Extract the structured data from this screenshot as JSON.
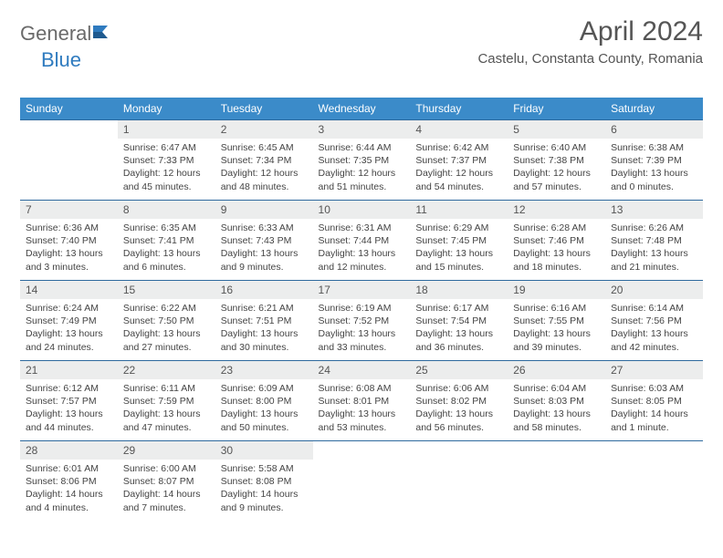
{
  "logo": {
    "word1": "General",
    "word2": "Blue"
  },
  "title": "April 2024",
  "subtitle": "Castelu, Constanta County, Romania",
  "colors": {
    "header_bg": "#3b8bc9",
    "header_text": "#ffffff",
    "daynum_bg": "#eceded",
    "row_border": "#2f6a9e",
    "logo_gray": "#6a6a6a",
    "logo_blue": "#2f7bbf"
  },
  "weekdays": [
    "Sunday",
    "Monday",
    "Tuesday",
    "Wednesday",
    "Thursday",
    "Friday",
    "Saturday"
  ],
  "weeks": [
    [
      {
        "n": "",
        "sr": "",
        "ss": "",
        "dl": ""
      },
      {
        "n": "1",
        "sr": "Sunrise: 6:47 AM",
        "ss": "Sunset: 7:33 PM",
        "dl": "Daylight: 12 hours and 45 minutes."
      },
      {
        "n": "2",
        "sr": "Sunrise: 6:45 AM",
        "ss": "Sunset: 7:34 PM",
        "dl": "Daylight: 12 hours and 48 minutes."
      },
      {
        "n": "3",
        "sr": "Sunrise: 6:44 AM",
        "ss": "Sunset: 7:35 PM",
        "dl": "Daylight: 12 hours and 51 minutes."
      },
      {
        "n": "4",
        "sr": "Sunrise: 6:42 AM",
        "ss": "Sunset: 7:37 PM",
        "dl": "Daylight: 12 hours and 54 minutes."
      },
      {
        "n": "5",
        "sr": "Sunrise: 6:40 AM",
        "ss": "Sunset: 7:38 PM",
        "dl": "Daylight: 12 hours and 57 minutes."
      },
      {
        "n": "6",
        "sr": "Sunrise: 6:38 AM",
        "ss": "Sunset: 7:39 PM",
        "dl": "Daylight: 13 hours and 0 minutes."
      }
    ],
    [
      {
        "n": "7",
        "sr": "Sunrise: 6:36 AM",
        "ss": "Sunset: 7:40 PM",
        "dl": "Daylight: 13 hours and 3 minutes."
      },
      {
        "n": "8",
        "sr": "Sunrise: 6:35 AM",
        "ss": "Sunset: 7:41 PM",
        "dl": "Daylight: 13 hours and 6 minutes."
      },
      {
        "n": "9",
        "sr": "Sunrise: 6:33 AM",
        "ss": "Sunset: 7:43 PM",
        "dl": "Daylight: 13 hours and 9 minutes."
      },
      {
        "n": "10",
        "sr": "Sunrise: 6:31 AM",
        "ss": "Sunset: 7:44 PM",
        "dl": "Daylight: 13 hours and 12 minutes."
      },
      {
        "n": "11",
        "sr": "Sunrise: 6:29 AM",
        "ss": "Sunset: 7:45 PM",
        "dl": "Daylight: 13 hours and 15 minutes."
      },
      {
        "n": "12",
        "sr": "Sunrise: 6:28 AM",
        "ss": "Sunset: 7:46 PM",
        "dl": "Daylight: 13 hours and 18 minutes."
      },
      {
        "n": "13",
        "sr": "Sunrise: 6:26 AM",
        "ss": "Sunset: 7:48 PM",
        "dl": "Daylight: 13 hours and 21 minutes."
      }
    ],
    [
      {
        "n": "14",
        "sr": "Sunrise: 6:24 AM",
        "ss": "Sunset: 7:49 PM",
        "dl": "Daylight: 13 hours and 24 minutes."
      },
      {
        "n": "15",
        "sr": "Sunrise: 6:22 AM",
        "ss": "Sunset: 7:50 PM",
        "dl": "Daylight: 13 hours and 27 minutes."
      },
      {
        "n": "16",
        "sr": "Sunrise: 6:21 AM",
        "ss": "Sunset: 7:51 PM",
        "dl": "Daylight: 13 hours and 30 minutes."
      },
      {
        "n": "17",
        "sr": "Sunrise: 6:19 AM",
        "ss": "Sunset: 7:52 PM",
        "dl": "Daylight: 13 hours and 33 minutes."
      },
      {
        "n": "18",
        "sr": "Sunrise: 6:17 AM",
        "ss": "Sunset: 7:54 PM",
        "dl": "Daylight: 13 hours and 36 minutes."
      },
      {
        "n": "19",
        "sr": "Sunrise: 6:16 AM",
        "ss": "Sunset: 7:55 PM",
        "dl": "Daylight: 13 hours and 39 minutes."
      },
      {
        "n": "20",
        "sr": "Sunrise: 6:14 AM",
        "ss": "Sunset: 7:56 PM",
        "dl": "Daylight: 13 hours and 42 minutes."
      }
    ],
    [
      {
        "n": "21",
        "sr": "Sunrise: 6:12 AM",
        "ss": "Sunset: 7:57 PM",
        "dl": "Daylight: 13 hours and 44 minutes."
      },
      {
        "n": "22",
        "sr": "Sunrise: 6:11 AM",
        "ss": "Sunset: 7:59 PM",
        "dl": "Daylight: 13 hours and 47 minutes."
      },
      {
        "n": "23",
        "sr": "Sunrise: 6:09 AM",
        "ss": "Sunset: 8:00 PM",
        "dl": "Daylight: 13 hours and 50 minutes."
      },
      {
        "n": "24",
        "sr": "Sunrise: 6:08 AM",
        "ss": "Sunset: 8:01 PM",
        "dl": "Daylight: 13 hours and 53 minutes."
      },
      {
        "n": "25",
        "sr": "Sunrise: 6:06 AM",
        "ss": "Sunset: 8:02 PM",
        "dl": "Daylight: 13 hours and 56 minutes."
      },
      {
        "n": "26",
        "sr": "Sunrise: 6:04 AM",
        "ss": "Sunset: 8:03 PM",
        "dl": "Daylight: 13 hours and 58 minutes."
      },
      {
        "n": "27",
        "sr": "Sunrise: 6:03 AM",
        "ss": "Sunset: 8:05 PM",
        "dl": "Daylight: 14 hours and 1 minute."
      }
    ],
    [
      {
        "n": "28",
        "sr": "Sunrise: 6:01 AM",
        "ss": "Sunset: 8:06 PM",
        "dl": "Daylight: 14 hours and 4 minutes."
      },
      {
        "n": "29",
        "sr": "Sunrise: 6:00 AM",
        "ss": "Sunset: 8:07 PM",
        "dl": "Daylight: 14 hours and 7 minutes."
      },
      {
        "n": "30",
        "sr": "Sunrise: 5:58 AM",
        "ss": "Sunset: 8:08 PM",
        "dl": "Daylight: 14 hours and 9 minutes."
      },
      {
        "n": "",
        "sr": "",
        "ss": "",
        "dl": ""
      },
      {
        "n": "",
        "sr": "",
        "ss": "",
        "dl": ""
      },
      {
        "n": "",
        "sr": "",
        "ss": "",
        "dl": ""
      },
      {
        "n": "",
        "sr": "",
        "ss": "",
        "dl": ""
      }
    ]
  ]
}
